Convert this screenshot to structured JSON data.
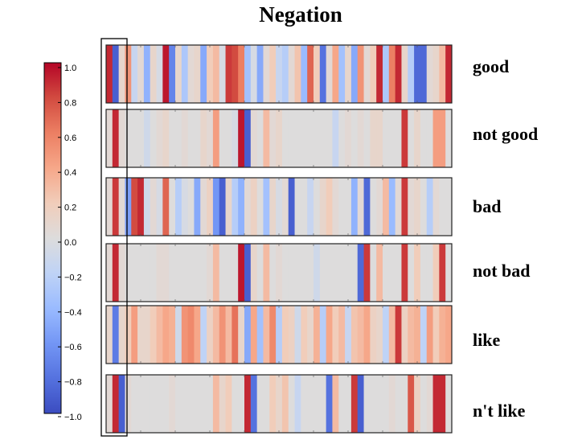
{
  "chart_data": {
    "type": "heatmap",
    "title": "Negation",
    "colorbar": {
      "colormap": "coolwarm",
      "vmin": -1.0,
      "vmax": 1.0,
      "ticks": [
        "1.0",
        "0.8",
        "0.6",
        "0.4",
        "0.2",
        "0.0",
        "−0.2",
        "−0.4",
        "−0.6",
        "−0.8",
        "−1.0"
      ]
    },
    "rows": [
      {
        "label": "good",
        "values": [
          0.9,
          -0.9,
          0.1,
          0.5,
          -0.15,
          0.05,
          -0.45,
          0.1,
          -0.05,
          0.95,
          -0.7,
          0.1,
          -0.3,
          0.05,
          0.1,
          -0.5,
          0.2,
          0.3,
          -0.05,
          0.85,
          0.8,
          0.6,
          -0.35,
          -0.05,
          -0.5,
          0.05,
          0.2,
          -0.15,
          -0.25,
          0.05,
          0.25,
          -0.4,
          0.7,
          0.2,
          -0.8,
          0.05,
          0.4,
          -0.35,
          0.1,
          -0.5,
          0.5,
          0.05,
          0.2,
          0.9,
          -0.3,
          0.6,
          0.9,
          0.1,
          -0.25,
          -0.85,
          -0.85,
          0.05,
          0.1,
          0.3,
          0.9
        ]
      },
      {
        "label": "not good",
        "values": [
          0.05,
          0.9,
          0.05,
          0,
          0,
          0,
          -0.1,
          0,
          0.05,
          0.1,
          0,
          0,
          0.05,
          0,
          0,
          0.1,
          0.05,
          0.45,
          0,
          0,
          -0.05,
          0.95,
          -0.9,
          0.05,
          0,
          0.3,
          0.05,
          0.1,
          0,
          0,
          0,
          0,
          0,
          0,
          0,
          0,
          -0.15,
          0,
          0.05,
          0,
          0.05,
          0,
          0.1,
          0.1,
          0,
          0,
          0,
          0.85,
          0,
          0.1,
          0,
          0,
          0.45,
          0.45,
          0
        ]
      },
      {
        "label": "bad",
        "values": [
          0.05,
          0.85,
          0.05,
          -0.55,
          0.8,
          0.9,
          -0.1,
          0.05,
          -0.05,
          0.7,
          0,
          -0.25,
          -0.05,
          0,
          -0.5,
          0.05,
          0.15,
          -0.6,
          -0.9,
          0.1,
          -0.25,
          -0.45,
          0.05,
          0.15,
          0,
          -0.35,
          0.1,
          -0.05,
          0.05,
          -0.9,
          0,
          0,
          -0.15,
          0,
          0.1,
          0.2,
          0.05,
          0,
          0,
          -0.45,
          0.05,
          -0.85,
          0,
          0.05,
          0.3,
          -0.4,
          0.05,
          0.85,
          0.05,
          0.1,
          0,
          -0.25,
          0.05,
          0,
          0
        ]
      },
      {
        "label": "not bad",
        "values": [
          0.05,
          0.9,
          0.05,
          0,
          0,
          0,
          0,
          0,
          0.05,
          0.05,
          0,
          0,
          0,
          0,
          0,
          0,
          0.05,
          0.3,
          0,
          0,
          0,
          0.95,
          -0.9,
          0.1,
          0,
          0.3,
          0,
          0.05,
          0,
          0,
          0,
          0,
          0,
          -0.1,
          0,
          0,
          0,
          0,
          0,
          0,
          -0.85,
          0.85,
          0,
          0.3,
          0,
          0,
          0,
          0.85,
          0,
          0.2,
          0,
          0,
          0.2,
          0.85,
          0
        ]
      },
      {
        "label": "like",
        "values": [
          0.1,
          -0.75,
          0.1,
          0.2,
          0.45,
          0.1,
          0.1,
          0.2,
          0.3,
          0.4,
          0.35,
          -0.1,
          0.5,
          0.55,
          0.4,
          -0.2,
          0.15,
          0.3,
          0.5,
          0.3,
          0.65,
          0.1,
          -0.5,
          0.4,
          -0.35,
          0.3,
          0.55,
          -0.25,
          0.2,
          0.15,
          -0.1,
          0.2,
          0.1,
          0.35,
          -0.25,
          0.4,
          0.2,
          0.3,
          -0.15,
          0.25,
          0.3,
          0.4,
          0.15,
          0.1,
          -0.2,
          0.3,
          0.85,
          0.15,
          0.3,
          0.35,
          -0.2,
          0.45,
          0.2,
          0.35,
          0.4
        ]
      },
      {
        "label": "n't like",
        "values": [
          0.05,
          0.9,
          -0.9,
          0.05,
          0,
          0,
          0,
          0,
          0,
          0,
          0.05,
          0,
          0,
          0,
          0,
          0,
          0,
          0.3,
          0.1,
          0.2,
          0,
          0,
          0.9,
          -0.8,
          0,
          0,
          0.2,
          0.1,
          0.25,
          0,
          -0.15,
          0,
          0,
          0,
          0,
          -0.8,
          0.3,
          0,
          0,
          0.85,
          -0.9,
          0,
          0,
          0,
          0,
          0.05,
          0,
          0,
          0.75,
          0.15,
          0,
          0.05,
          0.9,
          0.9,
          0
        ]
      }
    ]
  }
}
